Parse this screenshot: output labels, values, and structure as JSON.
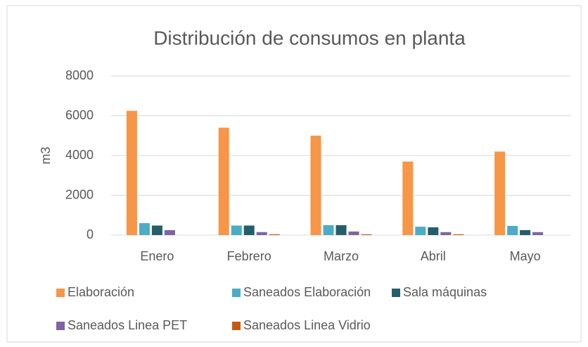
{
  "chart_data": {
    "type": "bar",
    "title": "Distribución de consumos en planta",
    "y_label": "m3",
    "categories": [
      "Enero",
      "Febrero",
      "Marzo",
      "Abril",
      "Mayo"
    ],
    "series": [
      {
        "name": "Elaboración",
        "color": "#f79646",
        "values": [
          6250,
          5400,
          5000,
          3700,
          4200
        ]
      },
      {
        "name": "Saneados Elaboración",
        "color": "#4bacc6",
        "values": [
          600,
          480,
          500,
          420,
          460
        ]
      },
      {
        "name": "Sala máquinas",
        "color": "#255e6b",
        "values": [
          480,
          480,
          500,
          390,
          250
        ]
      },
      {
        "name": "Saneados Linea PET",
        "color": "#8064a2",
        "values": [
          250,
          150,
          180,
          150,
          150
        ]
      },
      {
        "name": "Saneados Linea Vidrio",
        "color": "#c55a11",
        "values": [
          0,
          40,
          40,
          40,
          0
        ]
      }
    ],
    "ylim": [
      0,
      8000
    ],
    "yticks": [
      0,
      2000,
      4000,
      6000,
      8000
    ],
    "grid": true,
    "legend": "bottom"
  }
}
